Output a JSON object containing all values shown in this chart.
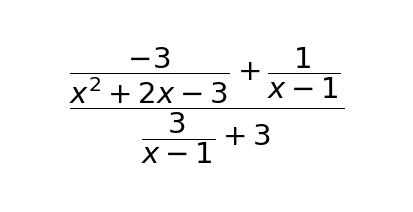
{
  "background_color": "#ffffff",
  "text_color": "#000000",
  "expression": "$\\dfrac{\\dfrac{-3}{x^2+2x-3}+\\dfrac{1}{x-1}}{\\dfrac{3}{x-1}+3}$",
  "fontsize": 21,
  "fig_width": 4.14,
  "fig_height": 2.12,
  "dpi": 100
}
